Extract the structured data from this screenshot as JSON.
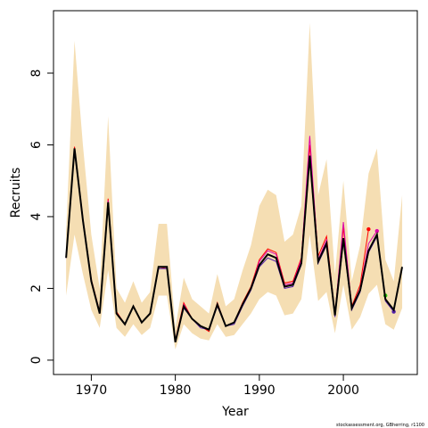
{
  "chart_data": {
    "type": "line",
    "xlabel": "Year",
    "ylabel": "Recruits",
    "footnote": "stockassessment.org, GBherring, r1100",
    "x": [
      1967,
      1968,
      1969,
      1970,
      1971,
      1972,
      1973,
      1974,
      1975,
      1976,
      1977,
      1978,
      1979,
      1980,
      1981,
      1982,
      1983,
      1984,
      1985,
      1986,
      1987,
      1988,
      1989,
      1990,
      1991,
      1992,
      1993,
      1994,
      1995,
      1996,
      1997,
      1998,
      1999,
      2000,
      2001,
      2002,
      2003,
      2004,
      2005,
      2006,
      2007
    ],
    "band": {
      "color": "#f5deb3",
      "upper": [
        3.6,
        8.9,
        6.0,
        3.5,
        2.0,
        6.8,
        2.0,
        1.6,
        2.2,
        1.6,
        1.9,
        3.8,
        3.8,
        0.9,
        2.3,
        1.7,
        1.5,
        1.3,
        2.4,
        1.5,
        1.7,
        2.5,
        3.2,
        4.3,
        4.75,
        4.6,
        3.3,
        3.5,
        4.3,
        9.4,
        4.6,
        5.6,
        2.4,
        5.0,
        2.2,
        3.2,
        5.2,
        5.9,
        2.8,
        2.2,
        4.6
      ],
      "lower": [
        1.8,
        3.5,
        2.4,
        1.4,
        0.9,
        2.5,
        0.9,
        0.65,
        1.0,
        0.7,
        0.9,
        1.8,
        1.8,
        0.3,
        1.0,
        0.75,
        0.6,
        0.55,
        1.0,
        0.65,
        0.7,
        1.0,
        1.3,
        1.7,
        1.9,
        1.8,
        1.25,
        1.3,
        1.7,
        3.5,
        1.65,
        1.9,
        0.75,
        2.1,
        0.85,
        1.2,
        1.85,
        2.1,
        1.0,
        0.85,
        1.45
      ]
    },
    "series": [
      {
        "color": "#ff0000",
        "values": [
          2.9,
          5.95,
          3.95,
          2.25,
          1.35,
          4.5,
          1.35,
          1.0,
          1.5,
          1.05,
          1.3,
          2.6,
          2.55,
          0.55,
          1.6,
          1.15,
          0.95,
          0.8,
          1.6,
          0.95,
          1.05,
          1.6,
          2.05,
          2.8,
          3.1,
          3.0,
          2.15,
          2.2,
          2.85,
          6.0,
          2.9,
          3.45,
          1.3,
          3.7,
          1.5,
          2.1,
          3.65,
          null,
          null,
          null,
          null
        ]
      },
      {
        "color": "#dd00aa",
        "values": [
          2.85,
          5.9,
          3.9,
          2.2,
          1.3,
          4.45,
          1.3,
          1.0,
          1.5,
          1.05,
          1.3,
          2.6,
          2.6,
          0.5,
          1.55,
          1.15,
          0.95,
          0.85,
          1.55,
          0.95,
          1.05,
          1.55,
          2.0,
          2.75,
          3.05,
          2.95,
          2.1,
          2.15,
          2.8,
          6.25,
          2.8,
          3.35,
          1.25,
          3.85,
          1.45,
          2.0,
          3.25,
          3.6,
          null,
          null,
          null
        ]
      },
      {
        "color": "#22cc00",
        "values": [
          null,
          null,
          null,
          null,
          null,
          null,
          null,
          null,
          null,
          null,
          null,
          null,
          null,
          null,
          null,
          null,
          null,
          null,
          null,
          null,
          null,
          null,
          null,
          null,
          null,
          null,
          null,
          null,
          null,
          null,
          null,
          null,
          null,
          null,
          null,
          null,
          null,
          null,
          1.8,
          null,
          null
        ]
      },
      {
        "color": "#5522aa",
        "values": [
          2.85,
          5.85,
          3.85,
          2.2,
          1.3,
          4.4,
          1.3,
          1.0,
          1.5,
          1.05,
          1.3,
          2.55,
          2.55,
          0.5,
          1.45,
          1.15,
          0.9,
          0.85,
          1.5,
          0.95,
          1.0,
          1.5,
          1.95,
          2.6,
          2.85,
          2.75,
          2.0,
          2.05,
          2.65,
          5.6,
          2.7,
          3.2,
          1.2,
          3.3,
          1.4,
          1.9,
          3.0,
          3.45,
          1.65,
          1.35,
          null
        ]
      },
      {
        "color": "#000000",
        "values": [
          2.85,
          5.9,
          3.9,
          2.2,
          1.3,
          4.4,
          1.3,
          1.0,
          1.5,
          1.05,
          1.3,
          2.6,
          2.6,
          0.5,
          1.5,
          1.15,
          0.95,
          0.85,
          1.55,
          0.95,
          1.05,
          1.55,
          2.0,
          2.65,
          2.95,
          2.85,
          2.05,
          2.1,
          2.7,
          5.7,
          2.75,
          3.25,
          1.25,
          3.4,
          1.45,
          1.95,
          3.05,
          3.5,
          1.7,
          1.4,
          2.6
        ]
      }
    ],
    "xlim": [
      1965.5,
      2008.8
    ],
    "ylim": [
      -0.4,
      9.74
    ],
    "xticks": [
      1970,
      1980,
      1990,
      2000
    ],
    "yticks": [
      0,
      2,
      4,
      6,
      8
    ]
  }
}
